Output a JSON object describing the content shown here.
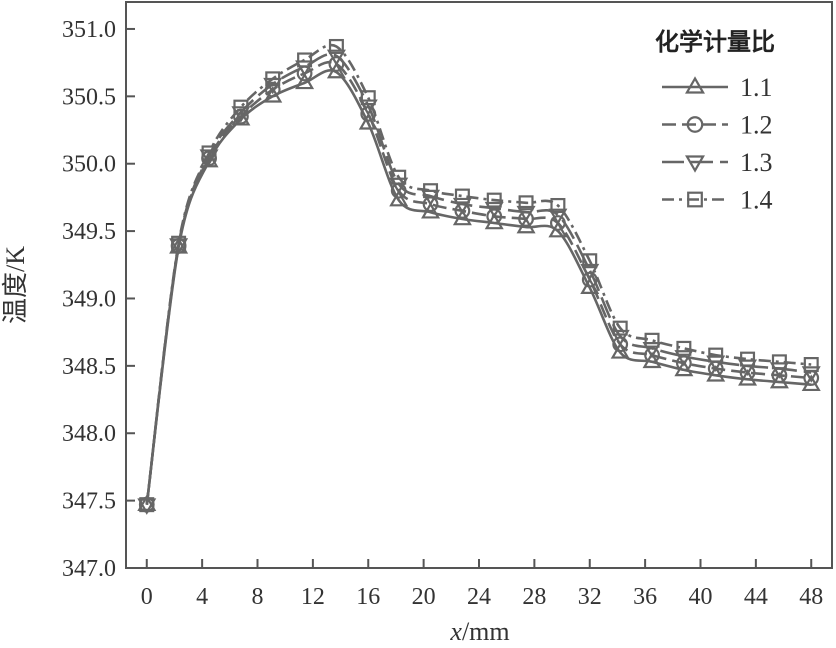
{
  "chart_data": {
    "type": "line",
    "xlabel_var": "x",
    "xlabel_unit": "/mm",
    "ylabel": "温度/K",
    "xlim": [
      -1.5,
      49.5
    ],
    "ylim": [
      347.0,
      351.2
    ],
    "xticks": [
      0,
      4,
      8,
      12,
      16,
      20,
      24,
      28,
      32,
      36,
      40,
      44,
      48
    ],
    "yticks": [
      347.0,
      347.5,
      348.0,
      348.5,
      349.0,
      349.5,
      350.0,
      350.5,
      351.0
    ],
    "ytick_labels": [
      "347.0",
      "347.5",
      "348.0",
      "348.5",
      "349.0",
      "349.5",
      "350.0",
      "350.5",
      "351.0"
    ],
    "legend_title": "化学计量比",
    "legend_position": "top-right",
    "grid": false,
    "line_color": "#666666",
    "x": [
      0,
      2.3,
      4.5,
      6.8,
      9.1,
      11.4,
      13.7,
      16.0,
      18.2,
      20.5,
      22.8,
      25.1,
      27.4,
      29.7,
      32.0,
      34.2,
      36.5,
      38.8,
      41.1,
      43.4,
      45.7,
      48.0
    ],
    "series": [
      {
        "name": "1.1",
        "marker": "triangle-up",
        "dash": "",
        "values": [
          347.47,
          349.38,
          350.02,
          350.33,
          350.5,
          350.6,
          350.68,
          350.3,
          349.73,
          349.64,
          349.59,
          349.56,
          349.53,
          349.5,
          349.08,
          348.6,
          348.53,
          348.47,
          348.43,
          348.4,
          348.38,
          348.36
        ]
      },
      {
        "name": "1.2",
        "marker": "circle",
        "dash": "14 6",
        "values": [
          347.47,
          349.39,
          350.04,
          350.35,
          350.55,
          350.67,
          350.74,
          350.37,
          349.8,
          349.7,
          349.65,
          349.61,
          349.59,
          349.56,
          349.14,
          348.66,
          348.58,
          348.52,
          348.48,
          348.45,
          348.43,
          348.41
        ]
      },
      {
        "name": "1.3",
        "marker": "triangle-down",
        "dash": "22 7",
        "values": [
          347.47,
          349.4,
          350.06,
          350.38,
          350.59,
          350.72,
          350.8,
          350.43,
          349.85,
          349.76,
          349.7,
          349.67,
          349.64,
          349.62,
          349.21,
          348.72,
          348.63,
          348.57,
          348.53,
          348.5,
          348.48,
          348.45
        ]
      },
      {
        "name": "1.4",
        "marker": "square",
        "dash": "12 5 3 5",
        "values": [
          347.47,
          349.41,
          350.08,
          350.42,
          350.63,
          350.77,
          350.87,
          350.49,
          349.9,
          349.8,
          349.76,
          349.73,
          349.71,
          349.69,
          349.28,
          348.78,
          348.69,
          348.63,
          348.58,
          348.55,
          348.53,
          348.51
        ]
      }
    ]
  }
}
